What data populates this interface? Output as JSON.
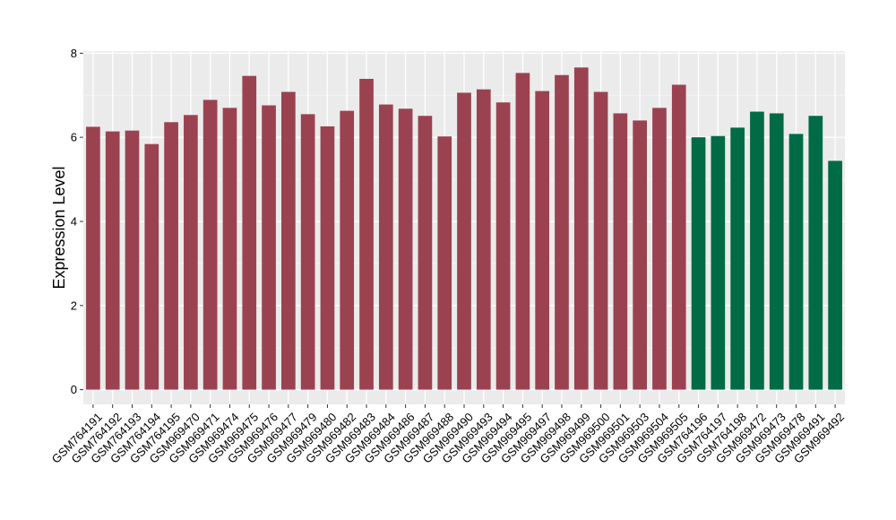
{
  "chart_data": {
    "type": "bar",
    "title": "",
    "xlabel": "",
    "ylabel": "Expression Level",
    "ylim": [
      -0.35,
      8.05
    ],
    "yticks": [
      0,
      2,
      4,
      6,
      8
    ],
    "grid": true,
    "legend": "none",
    "colors": {
      "panel_background": "#EBEBEB",
      "grid_major": "#FFFFFF",
      "grid_minor": "#F5F5F5",
      "group_1": "#9B4250",
      "group_2": "#006B45"
    },
    "categories": [
      "GSM764191",
      "GSM764192",
      "GSM764193",
      "GSM764194",
      "GSM764195",
      "GSM969470",
      "GSM969471",
      "GSM969474",
      "GSM969475",
      "GSM969476",
      "GSM969477",
      "GSM969479",
      "GSM969480",
      "GSM969482",
      "GSM969483",
      "GSM969484",
      "GSM969486",
      "GSM969487",
      "GSM969488",
      "GSM969490",
      "GSM969493",
      "GSM969494",
      "GSM969495",
      "GSM969497",
      "GSM969498",
      "GSM969499",
      "GSM969500",
      "GSM969501",
      "GSM969503",
      "GSM969504",
      "GSM969505",
      "GSM764196",
      "GSM764197",
      "GSM764198",
      "GSM969472",
      "GSM969473",
      "GSM969478",
      "GSM969491",
      "GSM969492"
    ],
    "values": [
      6.25,
      6.14,
      6.16,
      5.84,
      6.36,
      6.53,
      6.89,
      6.7,
      7.46,
      6.76,
      7.08,
      6.55,
      6.26,
      6.63,
      7.39,
      6.78,
      6.68,
      6.51,
      6.02,
      7.06,
      7.14,
      6.83,
      7.53,
      7.1,
      7.48,
      7.66,
      7.08,
      6.57,
      6.4,
      6.7,
      7.25,
      6.0,
      6.03,
      6.23,
      6.61,
      6.57,
      6.08,
      6.51,
      5.44
    ],
    "groups": [
      1,
      1,
      1,
      1,
      1,
      1,
      1,
      1,
      1,
      1,
      1,
      1,
      1,
      1,
      1,
      1,
      1,
      1,
      1,
      1,
      1,
      1,
      1,
      1,
      1,
      1,
      1,
      1,
      1,
      1,
      1,
      2,
      2,
      2,
      2,
      2,
      2,
      2,
      2
    ]
  }
}
